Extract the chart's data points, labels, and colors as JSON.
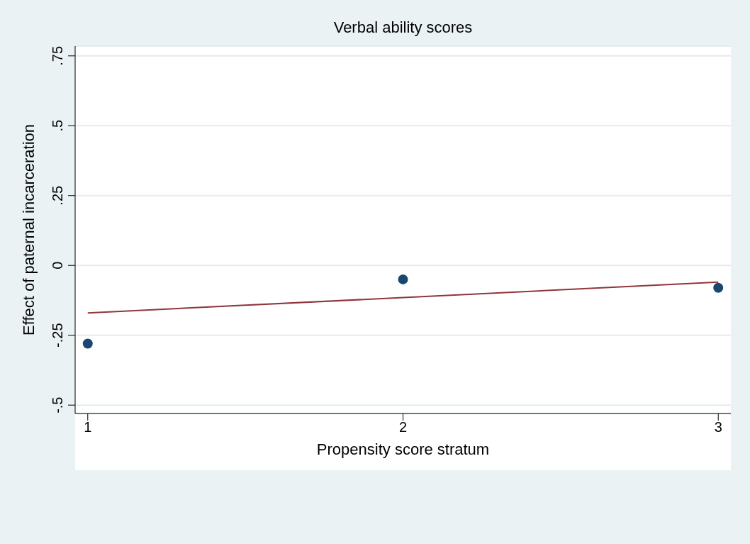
{
  "chart_data": {
    "type": "scatter",
    "title": "Verbal ability scores",
    "xlabel": "Propensity score stratum",
    "ylabel": "Effect of paternal incarceration",
    "xlim": [
      0.96,
      3.04
    ],
    "xticks": [
      1,
      2,
      3
    ],
    "ylim": [
      -0.53,
      0.785
    ],
    "yticks": [
      {
        "value": -0.5,
        "label": "-.5"
      },
      {
        "value": -0.25,
        "label": "-.25"
      },
      {
        "value": 0,
        "label": "0"
      },
      {
        "value": 0.25,
        "label": ".25"
      },
      {
        "value": 0.5,
        "label": ".5"
      },
      {
        "value": 0.75,
        "label": ".75"
      }
    ],
    "grid": "y",
    "series": [
      {
        "x": [
          1,
          2,
          3
        ],
        "values": [
          -0.28,
          -0.05,
          -0.08
        ],
        "color": "#1a476f",
        "marker": "circle"
      },
      {
        "type": "line",
        "x": [
          1,
          3
        ],
        "values": [
          -0.17,
          -0.06
        ],
        "color": "#90353b",
        "marker": "none",
        "line_style": "solid"
      }
    ]
  }
}
